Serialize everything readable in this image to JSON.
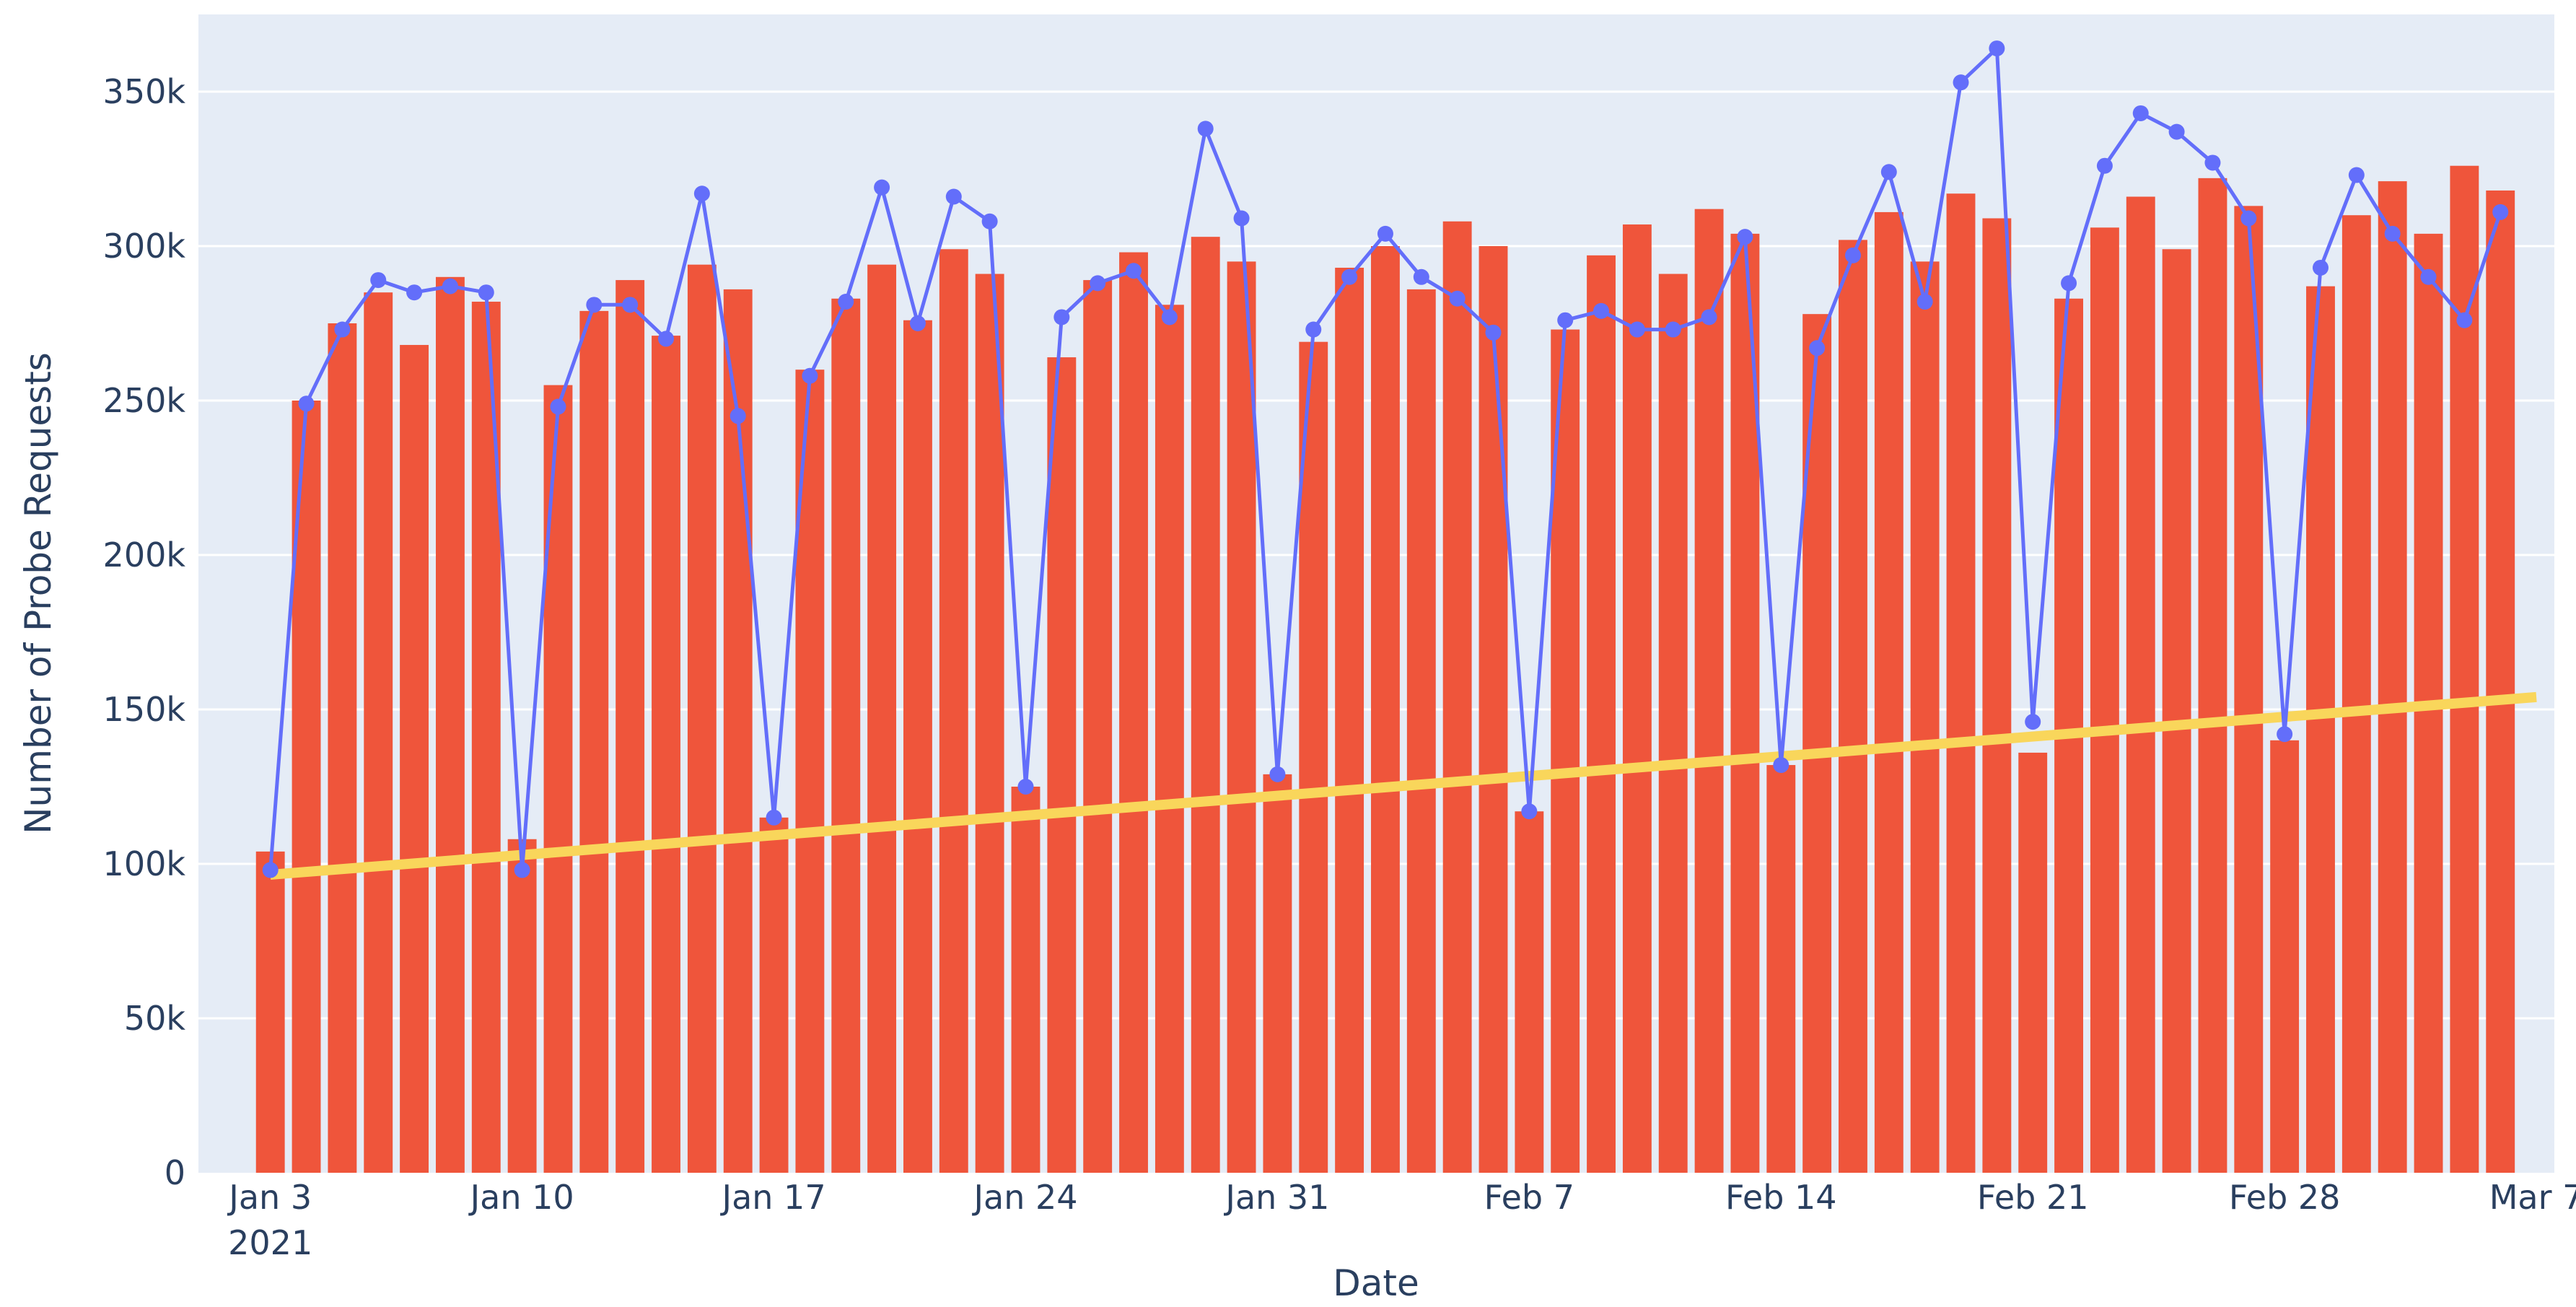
{
  "chart_data": {
    "type": "bar",
    "title": "",
    "xlabel": "Date",
    "ylabel": "Number of Probe Requests",
    "ylim": [
      0,
      375000
    ],
    "xlim": [
      "2021-01-01",
      "2021-03-07"
    ],
    "grid": true,
    "legend": "none",
    "x_ticks": [
      {
        "date": "2021-01-03",
        "label": "Jan 3",
        "sublabel": "2021"
      },
      {
        "date": "2021-01-10",
        "label": "Jan 10"
      },
      {
        "date": "2021-01-17",
        "label": "Jan 17"
      },
      {
        "date": "2021-01-24",
        "label": "Jan 24"
      },
      {
        "date": "2021-01-31",
        "label": "Jan 31"
      },
      {
        "date": "2021-02-07",
        "label": "Feb 7"
      },
      {
        "date": "2021-02-14",
        "label": "Feb 14"
      },
      {
        "date": "2021-02-21",
        "label": "Feb 21"
      },
      {
        "date": "2021-02-28",
        "label": "Feb 28"
      },
      {
        "date": "2021-03-07",
        "label": "Mar 7"
      }
    ],
    "y_ticks": [
      {
        "value": 0,
        "label": "0"
      },
      {
        "value": 50000,
        "label": "50k"
      },
      {
        "value": 100000,
        "label": "100k"
      },
      {
        "value": 150000,
        "label": "150k"
      },
      {
        "value": 200000,
        "label": "200k"
      },
      {
        "value": 250000,
        "label": "250k"
      },
      {
        "value": 300000,
        "label": "300k"
      },
      {
        "value": 350000,
        "label": "350k"
      }
    ],
    "x": [
      "2021-01-03",
      "2021-01-04",
      "2021-01-05",
      "2021-01-06",
      "2021-01-07",
      "2021-01-08",
      "2021-01-09",
      "2021-01-10",
      "2021-01-11",
      "2021-01-12",
      "2021-01-13",
      "2021-01-14",
      "2021-01-15",
      "2021-01-16",
      "2021-01-17",
      "2021-01-18",
      "2021-01-19",
      "2021-01-20",
      "2021-01-21",
      "2021-01-22",
      "2021-01-23",
      "2021-01-24",
      "2021-01-25",
      "2021-01-26",
      "2021-01-27",
      "2021-01-28",
      "2021-01-29",
      "2021-01-30",
      "2021-01-31",
      "2021-02-01",
      "2021-02-02",
      "2021-02-03",
      "2021-02-04",
      "2021-02-05",
      "2021-02-06",
      "2021-02-07",
      "2021-02-08",
      "2021-02-09",
      "2021-02-10",
      "2021-02-11",
      "2021-02-12",
      "2021-02-13",
      "2021-02-14",
      "2021-02-15",
      "2021-02-16",
      "2021-02-17",
      "2021-02-18",
      "2021-02-19",
      "2021-02-20",
      "2021-02-21",
      "2021-02-22",
      "2021-02-23",
      "2021-02-24",
      "2021-02-25",
      "2021-02-26",
      "2021-02-27",
      "2021-02-28",
      "2021-03-01",
      "2021-03-02",
      "2021-03-03",
      "2021-03-04",
      "2021-03-05",
      "2021-03-06"
    ],
    "series": [
      {
        "type": "bar",
        "color": "#ef553b",
        "values": [
          104000,
          250000,
          275000,
          285000,
          268000,
          290000,
          282000,
          108000,
          255000,
          279000,
          289000,
          271000,
          294000,
          286000,
          115000,
          260000,
          283000,
          294000,
          276000,
          299000,
          291000,
          125000,
          264000,
          289000,
          298000,
          281000,
          303000,
          295000,
          129000,
          269000,
          293000,
          300000,
          286000,
          308000,
          300000,
          117000,
          273000,
          297000,
          307000,
          291000,
          312000,
          304000,
          132000,
          278000,
          302000,
          311000,
          295000,
          317000,
          309000,
          136000,
          283000,
          306000,
          316000,
          299000,
          322000,
          313000,
          140000,
          287000,
          310000,
          321000,
          304000,
          326000,
          318000
        ]
      },
      {
        "type": "line",
        "color": "#636efa",
        "values": [
          98000,
          249000,
          273000,
          289000,
          285000,
          287000,
          285000,
          98000,
          248000,
          281000,
          281000,
          270000,
          317000,
          245000,
          115000,
          258000,
          282000,
          319000,
          275000,
          316000,
          308000,
          125000,
          277000,
          288000,
          292000,
          277000,
          338000,
          309000,
          129000,
          273000,
          290000,
          304000,
          290000,
          283000,
          272000,
          117000,
          276000,
          279000,
          273000,
          273000,
          277000,
          303000,
          132000,
          267000,
          297000,
          324000,
          282000,
          353000,
          364000,
          146000,
          288000,
          326000,
          343000,
          337000,
          327000,
          309000,
          142000,
          293000,
          323000,
          304000,
          290000,
          276000,
          311000
        ]
      },
      {
        "type": "trend",
        "color": "#f9d65b",
        "x": [
          "2021-01-03",
          "2021-03-07"
        ],
        "values": [
          96500,
          154000
        ]
      }
    ]
  }
}
